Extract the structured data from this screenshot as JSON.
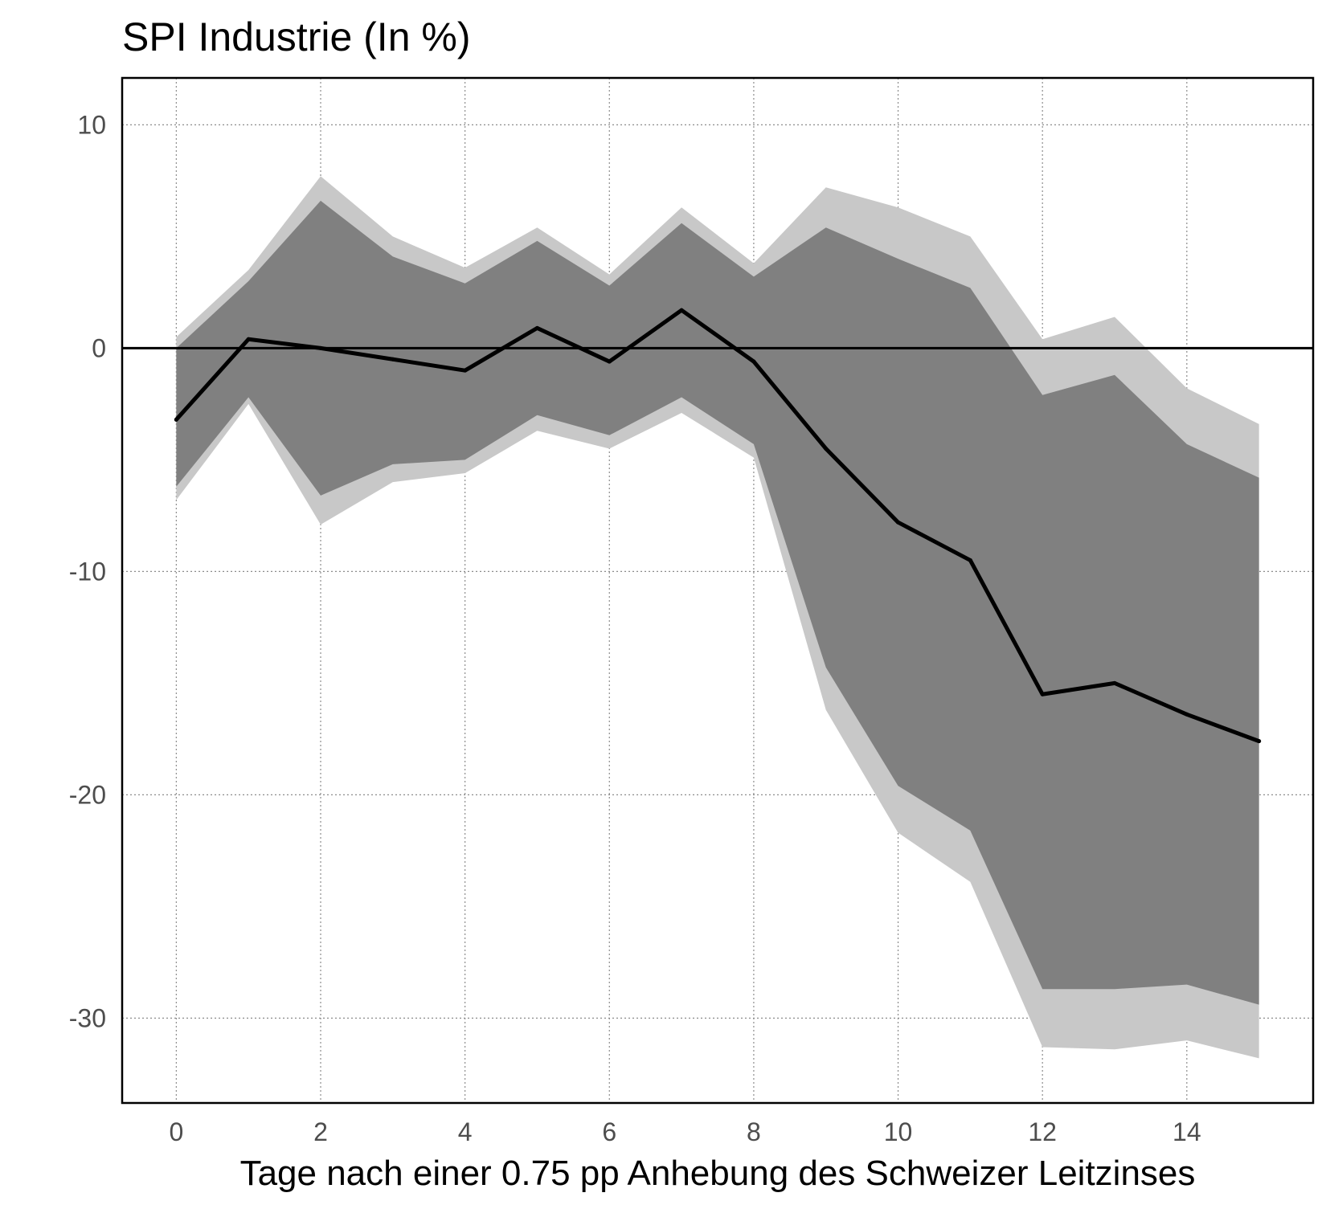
{
  "chart_data": {
    "type": "line",
    "title": "SPI Industrie (In %)",
    "xlabel": "Tage nach einer 0.75 pp Anhebung des Schweizer Leitzinses",
    "ylabel": "",
    "xlim": [
      -0.75,
      15.75
    ],
    "ylim": [
      -33.8,
      12.1
    ],
    "x_ticks": [
      0,
      2,
      4,
      6,
      8,
      10,
      12,
      14
    ],
    "y_ticks": [
      10,
      0,
      -10,
      -20,
      -30
    ],
    "grid": true,
    "zero_line": true,
    "x": [
      0,
      1,
      2,
      3,
      4,
      5,
      6,
      7,
      8,
      9,
      10,
      11,
      12,
      13,
      14,
      15
    ],
    "series": [
      {
        "role": "estimate",
        "color": "#000000",
        "values": [
          -3.2,
          0.4,
          0.0,
          -0.5,
          -1.0,
          0.9,
          -0.6,
          1.7,
          -0.6,
          -4.5,
          -7.8,
          -9.5,
          -15.5,
          -15.0,
          -16.4,
          -17.6
        ]
      }
    ],
    "bands": [
      {
        "role": "outer",
        "color": "#c8c8c8",
        "upper": [
          0.5,
          3.5,
          7.7,
          5.0,
          3.6,
          5.4,
          3.3,
          6.3,
          3.8,
          7.2,
          6.3,
          5.0,
          0.4,
          1.4,
          -1.8,
          -3.4
        ],
        "lower": [
          -6.8,
          -2.5,
          -7.9,
          -6.0,
          -5.6,
          -3.7,
          -4.5,
          -2.9,
          -4.9,
          -16.2,
          -21.7,
          -23.9,
          -31.3,
          -31.4,
          -31.0,
          -31.8
        ]
      },
      {
        "role": "inner",
        "color": "#808080",
        "upper": [
          0.0,
          3.0,
          6.6,
          4.1,
          2.9,
          4.8,
          2.8,
          5.6,
          3.2,
          5.4,
          4.0,
          2.7,
          -2.1,
          -1.2,
          -4.3,
          -5.8
        ],
        "lower": [
          -6.2,
          -2.2,
          -6.6,
          -5.2,
          -5.0,
          -3.0,
          -3.9,
          -2.2,
          -4.3,
          -14.3,
          -19.6,
          -21.6,
          -28.7,
          -28.7,
          -28.5,
          -29.4
        ]
      }
    ]
  }
}
